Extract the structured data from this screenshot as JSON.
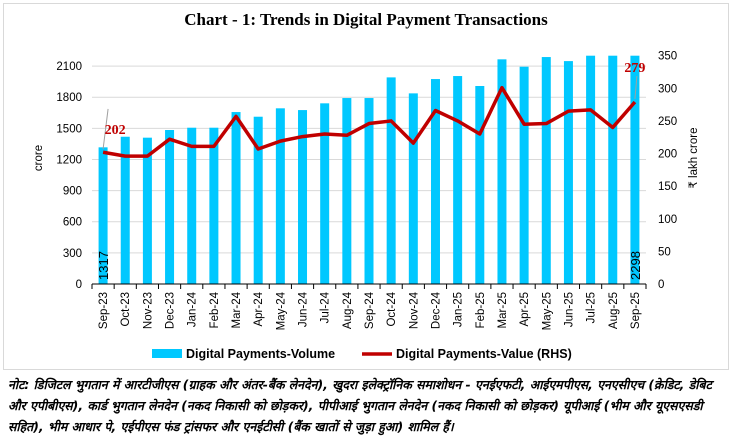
{
  "chart_data": {
    "type": "bar+line",
    "title": "Chart - 1: Trends in Digital Payment Transactions",
    "categories": [
      "Sep-23",
      "Oct-23",
      "Nov-23",
      "Dec-23",
      "Jan-24",
      "Feb-24",
      "Mar-24",
      "Apr-24",
      "May-24",
      "Jun-24",
      "Jul-24",
      "Aug-24",
      "Sep-24",
      "Oct-24",
      "Nov-24",
      "Dec-24",
      "Jan-25",
      "Feb-25",
      "Mar-25",
      "Apr-25",
      "May-25",
      "Jun-25",
      "Jul-25",
      "Aug-25",
      "Sep-25"
    ],
    "ylabel": "crore",
    "y2label": "₹ lakh crore",
    "ylim": [
      0,
      2200
    ],
    "yticks": [
      0,
      300,
      600,
      900,
      1200,
      1500,
      1800,
      2100
    ],
    "y2lim": [
      0,
      350
    ],
    "y2ticks": [
      0,
      50,
      100,
      150,
      200,
      250,
      300,
      350
    ],
    "grid": true,
    "legend": "bottom",
    "series": [
      {
        "name": "Digital Payments-Volume",
        "type": "bar",
        "axis": "left",
        "color": "#00c8ff",
        "values": [
          1317,
          1419,
          1410,
          1484,
          1506,
          1506,
          1657,
          1612,
          1693,
          1676,
          1741,
          1792,
          1792,
          1991,
          1837,
          1975,
          2004,
          1908,
          2165,
          2094,
          2187,
          2148,
          2206,
          2206,
          2298
        ],
        "data_labels": {
          "first": "1317",
          "last": "2298"
        }
      },
      {
        "name": "Digital Payments-Value (RHS)",
        "type": "line",
        "axis": "right",
        "color": "#c00000",
        "values": [
          202,
          196,
          196,
          222,
          211,
          211,
          257,
          207,
          219,
          226,
          230,
          228,
          246,
          250,
          216,
          266,
          250,
          230,
          301,
          245,
          246,
          265,
          267,
          240,
          279
        ],
        "data_labels": {
          "first": "202",
          "last": "279"
        }
      }
    ]
  },
  "note": "नोट: डिजिटल भुगतान में आरटीजीएस (ग्राहक और अंतर-बैंक लेनदेन), खुदरा इलेक्ट्रॉनिक समाशोधन - एनईएफटी, आईएमपीएस, एनएसीएच (क्रेडिट, डेबिट और एपीबीएस), कार्ड भुगतान लेनदेन (नकद निकासी को छोड़कर), पीपीआई भुगतान लेनदेन (नकद निकासी को छोड़कर) यूपीआई (भीम और यूएसएसडी सहित), भीम आधार पे, एईपीएस फंड ट्रांसफर और एनईटीसी (बैंक खातों से जुड़ा हुआ) शामिल हैं।"
}
